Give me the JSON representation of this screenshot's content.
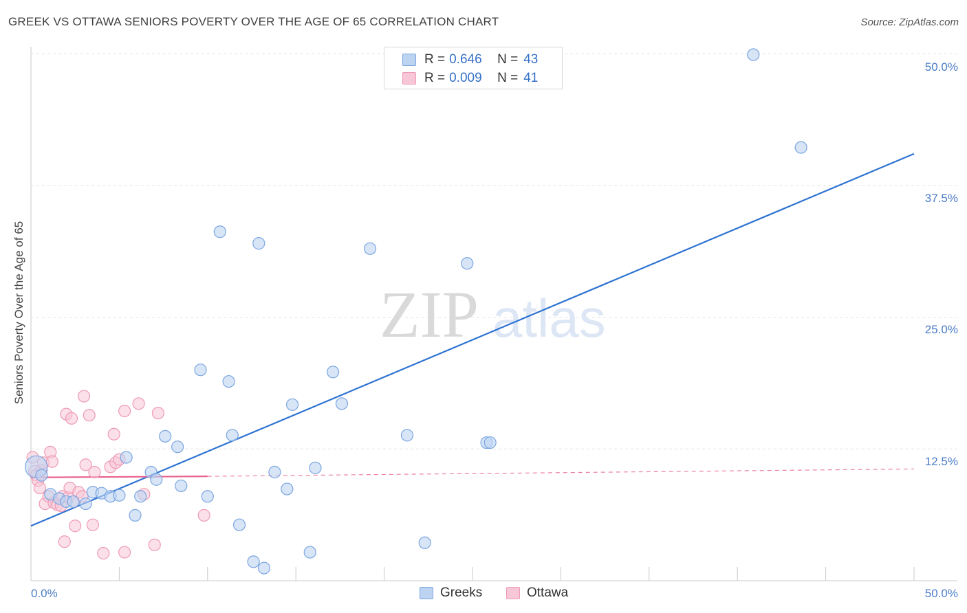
{
  "title": "GREEK VS OTTAWA SENIORS POVERTY OVER THE AGE OF 65 CORRELATION CHART",
  "source": "Source: ZipAtlas.com",
  "watermark": {
    "zip": "ZIP",
    "atlas": "atlas"
  },
  "legend": {
    "rows": [
      {
        "r_label": "R =",
        "r_value": "0.646",
        "n_label": "N =",
        "n_value": "43"
      },
      {
        "r_label": "R =",
        "r_value": "0.009",
        "n_label": "N =",
        "n_value": "41"
      }
    ]
  },
  "bottom_legend": {
    "greeks": "Greeks",
    "ottawa": "Ottawa"
  },
  "colors": {
    "greeks_fill": "#bcd3f2",
    "greeks_stroke": "#7aa5e0",
    "greeks_line": "#2d72d2",
    "ottawa_fill": "#f8c7d7",
    "ottawa_stroke": "#ee9ab4",
    "ottawa_line": "#e8608a",
    "grid": "#e3e3e3",
    "tick_text": "#4a7cc7"
  },
  "chart_data": {
    "type": "scatter",
    "title": "GREEK VS OTTAWA SENIORS POVERTY OVER THE AGE OF 65 CORRELATION CHART",
    "xlabel": "",
    "ylabel": "Seniors Poverty Over the Age of 65",
    "xlim": [
      0,
      50
    ],
    "ylim": [
      0,
      50
    ],
    "x_tick_labels": [
      "0.0%",
      "50.0%"
    ],
    "y_ticks": [
      12.5,
      25.0,
      37.5,
      50.0
    ],
    "y_tick_labels": [
      "12.5%",
      "25.0%",
      "37.5%",
      "50.0%"
    ],
    "series": [
      {
        "name": "Greeks",
        "r": 0.646,
        "n": 43,
        "trend": {
          "x": [
            0,
            50
          ],
          "y": [
            5.2,
            40.5
          ]
        },
        "points": [
          [
            0.3,
            10.8
          ],
          [
            0.6,
            10.0
          ],
          [
            1.1,
            8.2
          ],
          [
            1.6,
            7.8
          ],
          [
            2.0,
            7.5
          ],
          [
            2.4,
            7.5
          ],
          [
            3.1,
            7.3
          ],
          [
            3.5,
            8.4
          ],
          [
            4.0,
            8.3
          ],
          [
            4.5,
            8.0
          ],
          [
            5.0,
            8.1
          ],
          [
            5.4,
            11.7
          ],
          [
            5.9,
            6.2
          ],
          [
            6.2,
            8.0
          ],
          [
            6.8,
            10.3
          ],
          [
            7.1,
            9.6
          ],
          [
            7.6,
            13.7
          ],
          [
            8.3,
            12.7
          ],
          [
            8.5,
            9.0
          ],
          [
            9.6,
            20.0
          ],
          [
            10.0,
            8.0
          ],
          [
            10.7,
            33.1
          ],
          [
            11.2,
            18.9
          ],
          [
            11.4,
            13.8
          ],
          [
            11.8,
            5.3
          ],
          [
            12.6,
            1.8
          ],
          [
            12.9,
            32.0
          ],
          [
            13.2,
            1.2
          ],
          [
            13.8,
            10.3
          ],
          [
            14.5,
            8.7
          ],
          [
            14.8,
            16.7
          ],
          [
            15.8,
            2.7
          ],
          [
            16.1,
            10.7
          ],
          [
            17.1,
            19.8
          ],
          [
            17.6,
            16.8
          ],
          [
            19.2,
            31.5
          ],
          [
            21.3,
            13.8
          ],
          [
            22.3,
            3.6
          ],
          [
            24.7,
            30.1
          ],
          [
            25.8,
            13.1
          ],
          [
            26.0,
            13.1
          ],
          [
            40.9,
            49.9
          ],
          [
            43.6,
            41.1
          ]
        ]
      },
      {
        "name": "Ottawa",
        "r": 0.009,
        "n": 41,
        "trend": {
          "x": [
            0,
            10
          ],
          "y": [
            9.8,
            9.9
          ]
        },
        "trend_extension": {
          "x": [
            10,
            50
          ],
          "y": [
            9.9,
            10.6
          ]
        },
        "points": [
          [
            0.1,
            11.7
          ],
          [
            0.2,
            10.4
          ],
          [
            0.3,
            10.0
          ],
          [
            0.4,
            9.5
          ],
          [
            0.5,
            8.8
          ],
          [
            0.6,
            10.5
          ],
          [
            0.7,
            11.2
          ],
          [
            0.8,
            7.3
          ],
          [
            1.0,
            8.0
          ],
          [
            1.1,
            12.2
          ],
          [
            1.2,
            11.3
          ],
          [
            1.3,
            7.4
          ],
          [
            1.5,
            7.2
          ],
          [
            1.7,
            7.1
          ],
          [
            1.8,
            8.0
          ],
          [
            1.9,
            3.7
          ],
          [
            2.0,
            15.8
          ],
          [
            2.1,
            7.9
          ],
          [
            2.2,
            8.8
          ],
          [
            2.3,
            15.4
          ],
          [
            2.4,
            7.5
          ],
          [
            2.5,
            5.2
          ],
          [
            2.7,
            8.4
          ],
          [
            2.9,
            8.0
          ],
          [
            3.0,
            17.5
          ],
          [
            3.1,
            11.0
          ],
          [
            3.3,
            15.7
          ],
          [
            3.5,
            5.3
          ],
          [
            3.6,
            10.3
          ],
          [
            4.1,
            2.6
          ],
          [
            4.5,
            10.8
          ],
          [
            4.7,
            13.9
          ],
          [
            4.8,
            11.2
          ],
          [
            5.0,
            11.5
          ],
          [
            5.3,
            16.1
          ],
          [
            5.3,
            2.7
          ],
          [
            6.1,
            16.8
          ],
          [
            6.4,
            8.2
          ],
          [
            7.0,
            3.4
          ],
          [
            7.2,
            15.9
          ],
          [
            9.8,
            6.2
          ]
        ]
      }
    ]
  }
}
